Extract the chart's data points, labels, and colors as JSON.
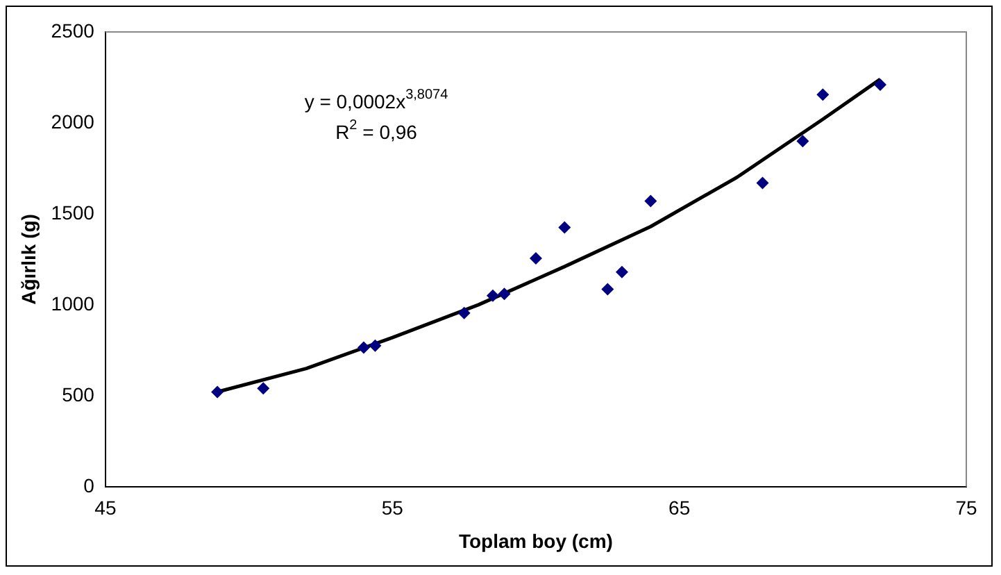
{
  "chart_data": {
    "type": "scatter",
    "xlabel": "Toplam boy (cm)",
    "ylabel": "Ağırlık (g)",
    "xlim": [
      45,
      75
    ],
    "xticks": [
      45,
      55,
      65,
      75
    ],
    "ylim": [
      0,
      2500
    ],
    "yticks": [
      0,
      500,
      1000,
      1500,
      2000,
      2500
    ],
    "grid": false,
    "legend": false,
    "marker": "diamond",
    "annotations": [
      "y = 0,0002x$^{3,8074}$",
      "R$^{2}$ = 0,96"
    ],
    "series": [
      {
        "color": "#000080",
        "x": [
          48.9,
          50.5,
          54,
          54.4,
          57.5,
          58.5,
          58.9,
          60,
          61,
          62.5,
          63,
          64,
          67.9,
          69.3,
          70,
          72
        ],
        "values": [
          520,
          540,
          765,
          775,
          955,
          1050,
          1060,
          1255,
          1425,
          1085,
          1180,
          1570,
          1670,
          1900,
          2155,
          2210
        ]
      },
      {
        "type": "line",
        "color": "#000000",
        "marker": "none",
        "x": [
          49,
          52,
          55,
          58,
          61,
          64,
          67,
          70,
          72
        ],
        "values": [
          525,
          650,
          820,
          1000,
          1210,
          1430,
          1700,
          2020,
          2240
        ]
      }
    ]
  }
}
